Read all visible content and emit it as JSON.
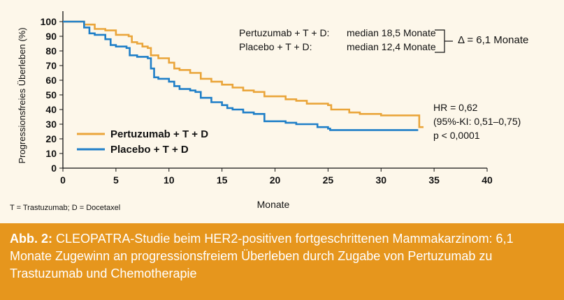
{
  "chart_data": {
    "type": "line",
    "xlabel": "Monate",
    "ylabel": "Progressionsfreies Überleben (%)",
    "xlim": [
      0,
      40
    ],
    "ylim": [
      0,
      100
    ],
    "xticks": [
      0,
      5,
      10,
      15,
      20,
      25,
      30,
      35,
      40
    ],
    "yticks": [
      0,
      10,
      20,
      30,
      40,
      50,
      60,
      70,
      80,
      90,
      100
    ],
    "grid": false,
    "legend_position": "bottom-left",
    "series": [
      {
        "name": "Pertuzumab + T + D",
        "color": "#eaa53a",
        "points": [
          [
            0,
            100
          ],
          [
            1,
            100
          ],
          [
            1.5,
            100
          ],
          [
            2,
            98
          ],
          [
            3,
            95
          ],
          [
            4,
            94
          ],
          [
            5,
            91
          ],
          [
            6.2,
            90
          ],
          [
            6.5,
            86
          ],
          [
            7,
            85
          ],
          [
            7.5,
            83
          ],
          [
            8,
            82
          ],
          [
            8.3,
            77
          ],
          [
            9,
            75
          ],
          [
            10,
            72
          ],
          [
            10.5,
            68
          ],
          [
            11,
            67
          ],
          [
            12,
            65
          ],
          [
            13,
            61
          ],
          [
            14,
            59
          ],
          [
            15,
            57
          ],
          [
            16,
            55
          ],
          [
            17,
            53
          ],
          [
            18,
            52
          ],
          [
            19,
            49
          ],
          [
            20,
            49
          ],
          [
            21,
            47
          ],
          [
            22,
            46
          ],
          [
            23,
            44
          ],
          [
            24,
            44
          ],
          [
            25,
            43
          ],
          [
            25.3,
            40
          ],
          [
            26,
            40
          ],
          [
            27,
            38
          ],
          [
            28,
            37
          ],
          [
            29,
            37
          ],
          [
            30,
            36
          ],
          [
            31,
            36
          ],
          [
            32,
            36
          ],
          [
            33,
            36
          ],
          [
            33.5,
            36
          ],
          [
            33.6,
            28
          ],
          [
            34,
            28
          ]
        ]
      },
      {
        "name": "Placebo + T + D",
        "color": "#1f7fc8",
        "points": [
          [
            0,
            100
          ],
          [
            1.5,
            100
          ],
          [
            2,
            96
          ],
          [
            2.5,
            92
          ],
          [
            3,
            91
          ],
          [
            4,
            88
          ],
          [
            4.5,
            84
          ],
          [
            5,
            83
          ],
          [
            6,
            82
          ],
          [
            6.3,
            77
          ],
          [
            7,
            76
          ],
          [
            8,
            75
          ],
          [
            8.3,
            68
          ],
          [
            8.6,
            62
          ],
          [
            9,
            61
          ],
          [
            10,
            59
          ],
          [
            10.5,
            56
          ],
          [
            11,
            54
          ],
          [
            12,
            53
          ],
          [
            12.5,
            52
          ],
          [
            13,
            48
          ],
          [
            14,
            45
          ],
          [
            15,
            43
          ],
          [
            15.5,
            41
          ],
          [
            16,
            40
          ],
          [
            17,
            38
          ],
          [
            18,
            37
          ],
          [
            19,
            36
          ],
          [
            19,
            32
          ],
          [
            20,
            32
          ],
          [
            21,
            32
          ],
          [
            21,
            31
          ],
          [
            22,
            30
          ],
          [
            23,
            30
          ],
          [
            24,
            28
          ],
          [
            25,
            27
          ],
          [
            25.2,
            26
          ],
          [
            26,
            26
          ],
          [
            27,
            26
          ],
          [
            28,
            26
          ],
          [
            29,
            26
          ],
          [
            30,
            26
          ],
          [
            31,
            26
          ],
          [
            32,
            26
          ],
          [
            33,
            26
          ],
          [
            33.5,
            26
          ]
        ]
      }
    ]
  },
  "annotations": {
    "pertuzumab_line": "Pertuzumab + T + D:",
    "pertuzumab_median": "median  18,5 Monate",
    "placebo_line": "Placebo + T + D:",
    "placebo_median": "median 12,4 Monate",
    "delta": "Δ = 6,1 Monate",
    "hr": "HR = 0,62",
    "ci": "(95%-KI: 0,51–0,75)",
    "p": "p < 0,0001"
  },
  "footnote": "T = Trastuzumab; D = Docetaxel",
  "caption": {
    "label": "Abb. 2:",
    "text": " CLEOPATRA-Studie beim HER2-positiven fortgeschrittenen Mammakarzinom: 6,1 Monate Zugewinn an progressionsfreiem Überleben durch Zugabe von Pertuzumab zu Trastuzumab und Chemotherapie"
  },
  "colors": {
    "background": "#fdf7ea",
    "caption_bg": "#e6961d",
    "caption_text": "#ffffff"
  }
}
